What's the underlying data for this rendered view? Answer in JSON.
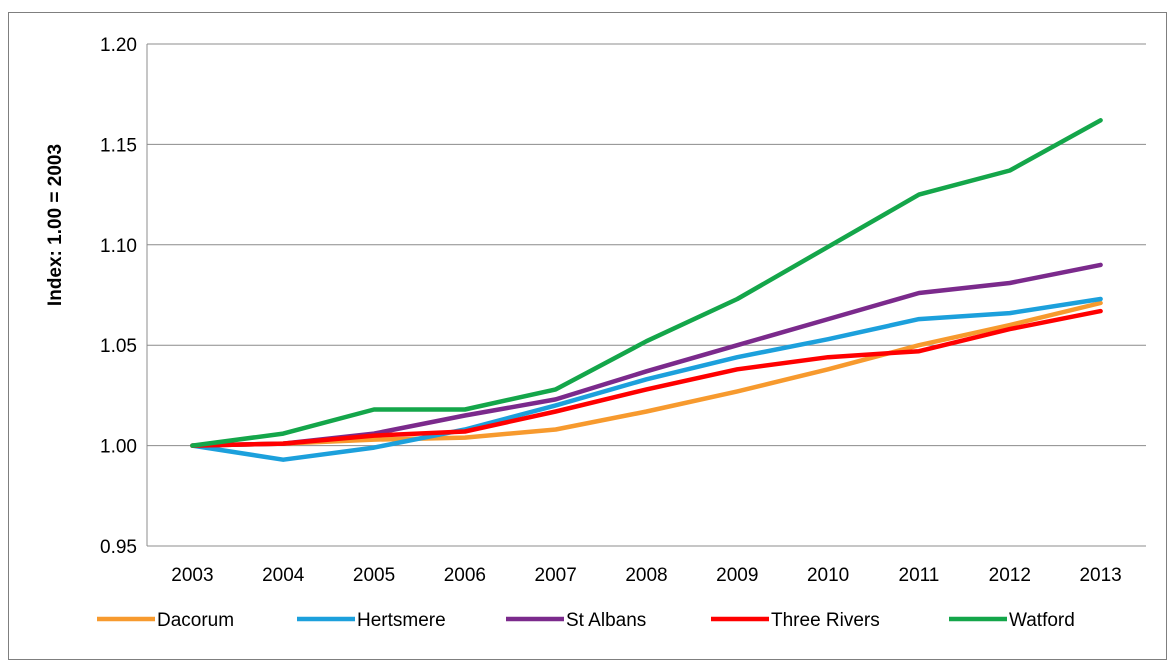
{
  "chart_data": {
    "type": "line",
    "title": "",
    "xlabel": "",
    "ylabel": "Index: 1.00 = 2003",
    "ylim": [
      0.95,
      1.2
    ],
    "yticks": [
      "0.95",
      "1.00",
      "1.05",
      "1.10",
      "1.15",
      "1.20"
    ],
    "categories": [
      "2003",
      "2004",
      "2005",
      "2006",
      "2007",
      "2008",
      "2009",
      "2010",
      "2011",
      "2012",
      "2013"
    ],
    "grid": true,
    "legend_position": "bottom",
    "series": [
      {
        "name": "Dacorum",
        "color": "#f79a2e",
        "values": [
          1.0,
          1.001,
          1.003,
          1.004,
          1.008,
          1.017,
          1.027,
          1.038,
          1.05,
          1.06,
          1.071
        ]
      },
      {
        "name": "Hertsmere",
        "color": "#1ca0dc",
        "values": [
          1.0,
          0.993,
          0.999,
          1.008,
          1.02,
          1.033,
          1.044,
          1.053,
          1.063,
          1.066,
          1.073
        ]
      },
      {
        "name": "St Albans",
        "color": "#7b2a8c",
        "values": [
          1.0,
          1.001,
          1.006,
          1.015,
          1.023,
          1.037,
          1.05,
          1.063,
          1.076,
          1.081,
          1.09
        ]
      },
      {
        "name": "Three Rivers",
        "color": "#ff0000",
        "values": [
          1.0,
          1.001,
          1.005,
          1.007,
          1.017,
          1.028,
          1.038,
          1.044,
          1.047,
          1.058,
          1.067
        ]
      },
      {
        "name": "Watford",
        "color": "#14a64a",
        "values": [
          1.0,
          1.006,
          1.018,
          1.018,
          1.028,
          1.052,
          1.073,
          1.099,
          1.125,
          1.137,
          1.162
        ]
      }
    ]
  }
}
